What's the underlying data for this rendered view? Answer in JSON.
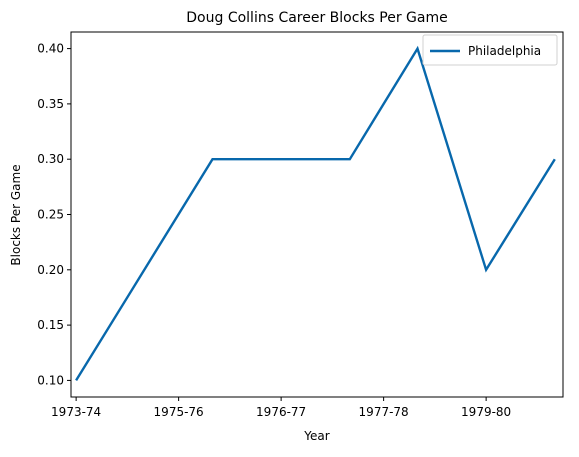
{
  "chart_data": {
    "type": "line",
    "title": "Doug Collins  Career Blocks Per Game",
    "xlabel": "Year",
    "ylabel": "Blocks Per Game",
    "x_tick_labels": [
      "1973-74",
      "1975-76",
      "1976-77",
      "1977-78",
      "1979-80"
    ],
    "x_tick_positions": [
      0,
      1,
      2,
      3,
      4
    ],
    "y_ticks": [
      "0.10",
      "0.15",
      "0.20",
      "0.25",
      "0.30",
      "0.35",
      "0.40"
    ],
    "ylim": [
      0.085,
      0.415
    ],
    "xlim": [
      -0.05,
      4.75
    ],
    "series": [
      {
        "name": "Philadelphia",
        "color": "#0868ac",
        "x": [
          0,
          1.33,
          2.67,
          3.33,
          4,
          4.67
        ],
        "y": [
          0.1,
          0.3,
          0.3,
          0.4,
          0.2,
          0.3
        ]
      }
    ],
    "legend_position": "top-right",
    "grid": false
  }
}
